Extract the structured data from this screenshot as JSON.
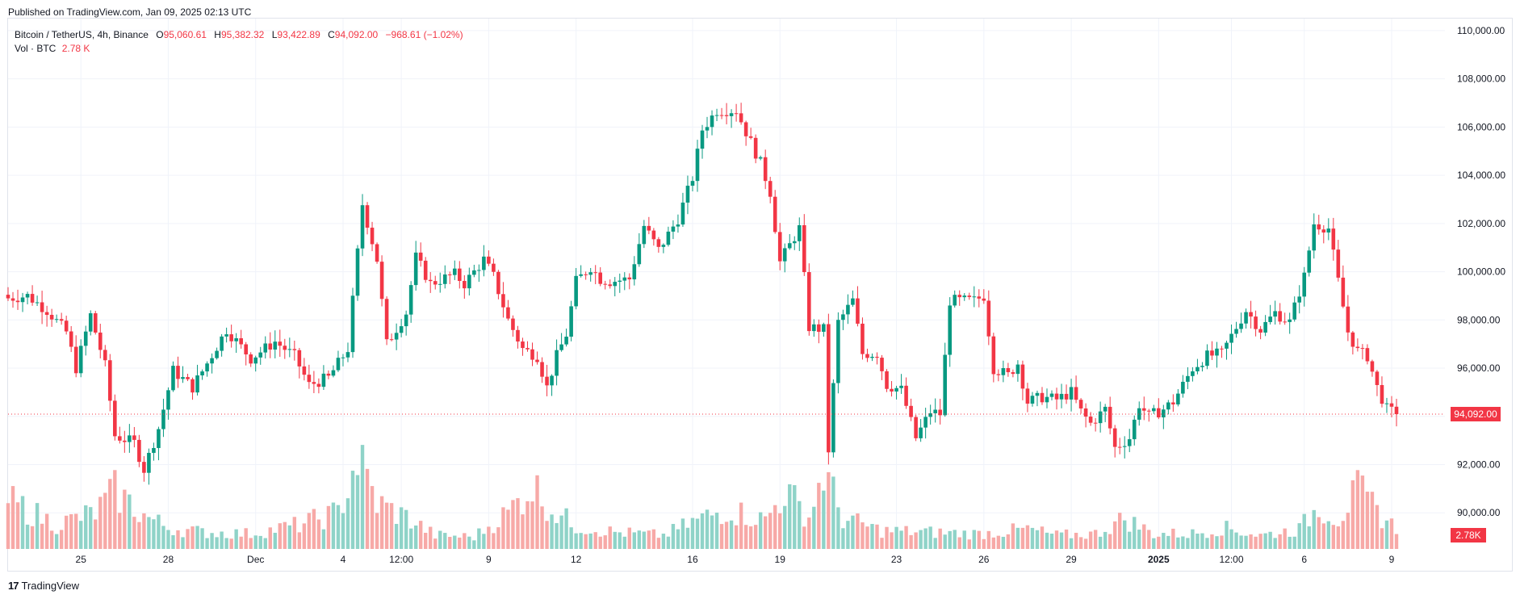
{
  "header": {
    "published": "Published on TradingView.com, Jan 09, 2025 02:13 UTC"
  },
  "legend": {
    "symbol": "Bitcoin / TetherUS, 4h, Binance",
    "open_label": "O",
    "open": "95,060.61",
    "high_label": "H",
    "high": "95,382.32",
    "low_label": "L",
    "low": "93,422.89",
    "close_label": "C",
    "close": "94,092.00",
    "change": "−968.61 (−1.02%)",
    "vol_label": "Vol · BTC",
    "vol": "2.78 K"
  },
  "footer": {
    "brand": "TradingView",
    "logo_mark": "17"
  },
  "colors": {
    "up": "#089981",
    "down": "#f23645",
    "up_vol": "#8fd3c8",
    "down_vol": "#f7a9a7",
    "grid": "#f0f3fa"
  },
  "chart_data": {
    "type": "candlestick",
    "symbol": "Bitcoin / TetherUS",
    "interval": "4h",
    "exchange": "Binance",
    "ylim": [
      88500,
      110500
    ],
    "y_ticks": [
      "90,000.00",
      "92,000.00",
      "94,000.00",
      "96,000.00",
      "98,000.00",
      "100,000.00",
      "102,000.00",
      "104,000.00",
      "106,000.00",
      "108,000.00",
      "110,000.00"
    ],
    "y_tick_values": [
      90000,
      92000,
      94000,
      96000,
      98000,
      100000,
      102000,
      104000,
      106000,
      108000,
      110000
    ],
    "x_ticks": [
      {
        "label": "25",
        "index": 15
      },
      {
        "label": "28",
        "index": 33
      },
      {
        "label": "Dec",
        "index": 51
      },
      {
        "label": "4",
        "index": 69
      },
      {
        "label": "12:00",
        "index": 81
      },
      {
        "label": "9",
        "index": 99
      },
      {
        "label": "12",
        "index": 117
      },
      {
        "label": "16",
        "index": 141
      },
      {
        "label": "19",
        "index": 159
      },
      {
        "label": "23",
        "index": 183
      },
      {
        "label": "26",
        "index": 201
      },
      {
        "label": "29",
        "index": 219
      },
      {
        "label": "2025",
        "index": 237
      },
      {
        "label": "12:00",
        "index": 252
      },
      {
        "label": "6",
        "index": 267
      },
      {
        "label": "9",
        "index": 285
      }
    ],
    "last_price": 94092.0,
    "last_price_label": "94,092.00",
    "last_volume_label": "2.78K",
    "anchors": [
      [
        0,
        98900
      ],
      [
        4,
        99000
      ],
      [
        8,
        98400
      ],
      [
        12,
        97500
      ],
      [
        14,
        96000
      ],
      [
        17,
        98200
      ],
      [
        20,
        96100
      ],
      [
        22,
        93200
      ],
      [
        26,
        92900
      ],
      [
        28,
        91800
      ],
      [
        31,
        93500
      ],
      [
        34,
        95900
      ],
      [
        38,
        95200
      ],
      [
        41,
        96200
      ],
      [
        45,
        97600
      ],
      [
        50,
        96400
      ],
      [
        55,
        97100
      ],
      [
        59,
        96500
      ],
      [
        62,
        95300
      ],
      [
        66,
        95600
      ],
      [
        70,
        96800
      ],
      [
        73,
        102800
      ],
      [
        76,
        100500
      ],
      [
        78,
        97000
      ],
      [
        82,
        98300
      ],
      [
        84,
        100600
      ],
      [
        87,
        99500
      ],
      [
        92,
        99900
      ],
      [
        94,
        99500
      ],
      [
        98,
        100500
      ],
      [
        100,
        99800
      ],
      [
        103,
        98000
      ],
      [
        106,
        96800
      ],
      [
        109,
        96500
      ],
      [
        111,
        95200
      ],
      [
        113,
        96500
      ],
      [
        115,
        97400
      ],
      [
        117,
        99600
      ],
      [
        120,
        100200
      ],
      [
        122,
        99700
      ],
      [
        124,
        99600
      ],
      [
        128,
        99700
      ],
      [
        131,
        101900
      ],
      [
        134,
        100900
      ],
      [
        138,
        102200
      ],
      [
        141,
        103900
      ],
      [
        143,
        105900
      ],
      [
        146,
        106700
      ],
      [
        150,
        106700
      ],
      [
        152,
        105800
      ],
      [
        155,
        104500
      ],
      [
        157,
        103300
      ],
      [
        159,
        100400
      ],
      [
        163,
        101800
      ],
      [
        165,
        97700
      ],
      [
        168,
        97600
      ],
      [
        169,
        92600
      ],
      [
        171,
        97900
      ],
      [
        174,
        98800
      ],
      [
        176,
        96600
      ],
      [
        179,
        96600
      ],
      [
        181,
        95300
      ],
      [
        184,
        95100
      ],
      [
        187,
        93100
      ],
      [
        190,
        94200
      ],
      [
        192,
        94100
      ],
      [
        194,
        98800
      ],
      [
        199,
        98800
      ],
      [
        201,
        99000
      ],
      [
        203,
        96000
      ],
      [
        206,
        95700
      ],
      [
        208,
        96200
      ],
      [
        210,
        94600
      ],
      [
        213,
        94800
      ],
      [
        216,
        94700
      ],
      [
        219,
        95000
      ],
      [
        221,
        94200
      ],
      [
        223,
        93700
      ],
      [
        226,
        94300
      ],
      [
        228,
        92700
      ],
      [
        231,
        93100
      ],
      [
        233,
        94500
      ],
      [
        235,
        94000
      ],
      [
        238,
        94300
      ],
      [
        240,
        94600
      ],
      [
        244,
        96000
      ],
      [
        247,
        96500
      ],
      [
        250,
        96600
      ],
      [
        253,
        97700
      ],
      [
        255,
        98400
      ],
      [
        258,
        97600
      ],
      [
        261,
        98300
      ],
      [
        264,
        97900
      ],
      [
        267,
        99800
      ],
      [
        269,
        102000
      ],
      [
        272,
        101800
      ],
      [
        274,
        99600
      ],
      [
        276,
        97500
      ],
      [
        278,
        96700
      ],
      [
        280,
        96500
      ],
      [
        282,
        95200
      ],
      [
        284,
        94300
      ],
      [
        286,
        94092
      ]
    ],
    "volume_anchors": [
      [
        0,
        3.2
      ],
      [
        10,
        1.6
      ],
      [
        18,
        2.4
      ],
      [
        22,
        3.8
      ],
      [
        28,
        2.2
      ],
      [
        33,
        1.4
      ],
      [
        40,
        1.1
      ],
      [
        50,
        1.0
      ],
      [
        60,
        1.6
      ],
      [
        68,
        2.4
      ],
      [
        72,
        6.0
      ],
      [
        76,
        3.0
      ],
      [
        82,
        2.1
      ],
      [
        88,
        0.9
      ],
      [
        96,
        0.8
      ],
      [
        103,
        2.4
      ],
      [
        108,
        4.2
      ],
      [
        112,
        2.6
      ],
      [
        117,
        1.5
      ],
      [
        125,
        1.1
      ],
      [
        135,
        0.9
      ],
      [
        142,
        1.9
      ],
      [
        148,
        2.6
      ],
      [
        156,
        1.9
      ],
      [
        160,
        3.8
      ],
      [
        165,
        2.1
      ],
      [
        168,
        5.1
      ],
      [
        172,
        2.0
      ],
      [
        180,
        1.2
      ],
      [
        190,
        1.1
      ],
      [
        200,
        1.0
      ],
      [
        210,
        1.3
      ],
      [
        216,
        0.9
      ],
      [
        224,
        1.0
      ],
      [
        230,
        2.0
      ],
      [
        236,
        1.0
      ],
      [
        244,
        1.0
      ],
      [
        250,
        1.4
      ],
      [
        258,
        0.9
      ],
      [
        266,
        1.3
      ],
      [
        270,
        2.8
      ],
      [
        274,
        2.0
      ],
      [
        278,
        3.8
      ],
      [
        282,
        2.5
      ],
      [
        286,
        1.3
      ]
    ],
    "volume_max": 8.5,
    "candle_count": 287
  }
}
